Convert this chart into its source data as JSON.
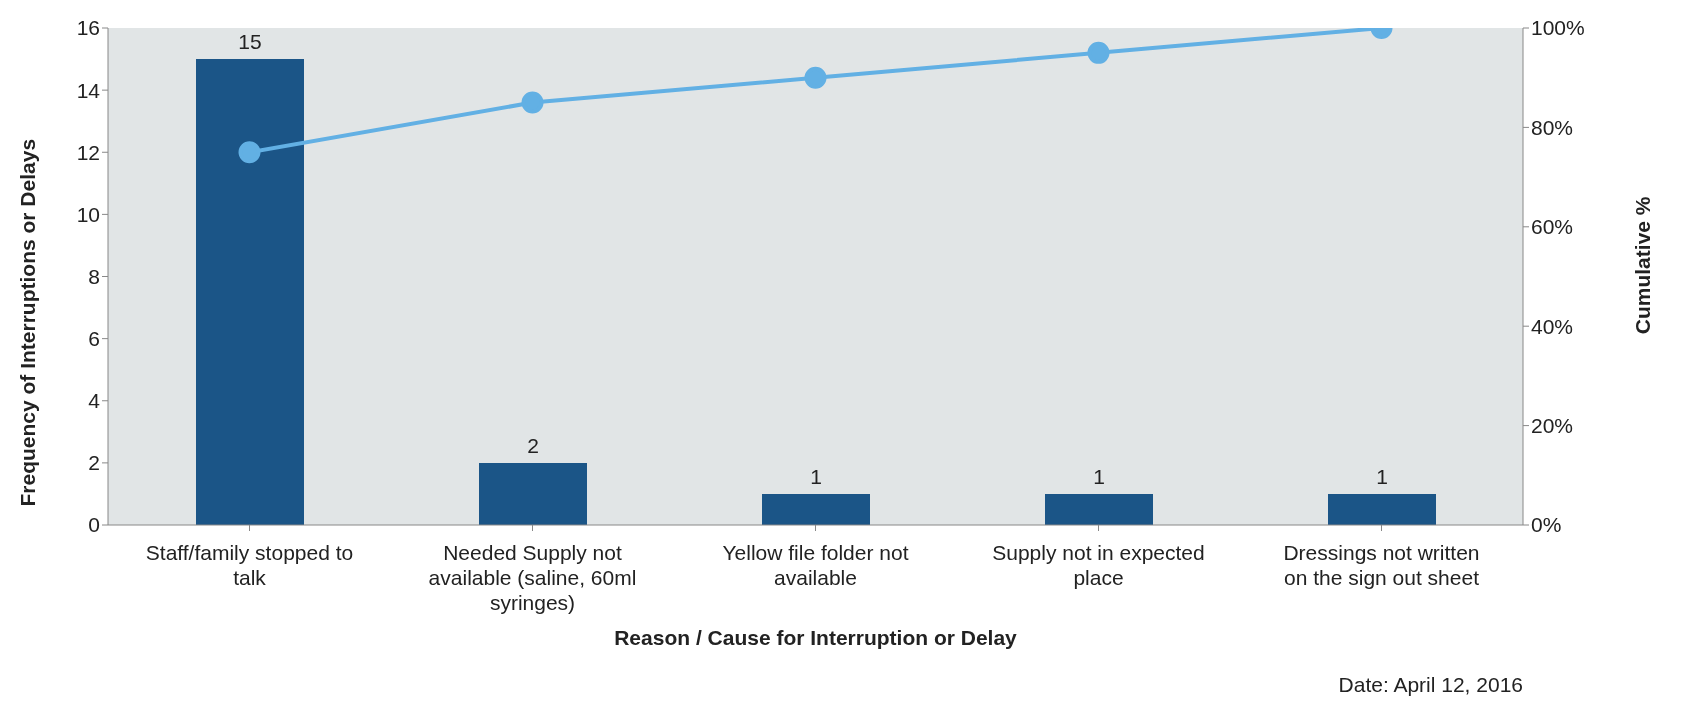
{
  "chart_data": {
    "type": "bar",
    "xlabel": "Reason / Cause for Interruption or Delay",
    "ylabel": "Frequency of Interruptions or Delays",
    "y2label": "Cumulative   %",
    "categories": [
      "Staff/family stopped to talk",
      "Needed Supply not available (saline, 60ml syringes)",
      "Yellow file folder not available",
      "Supply not in expected place",
      "Dressings not written on the sign out sheet"
    ],
    "series": [
      {
        "color": "#1b5587",
        "values": [
          15,
          2,
          1,
          1,
          1
        ],
        "value_labels": [
          "15",
          "2",
          "1",
          "1",
          "1"
        ]
      },
      {
        "type": "line",
        "axis": "y2",
        "color": "#62b0e4",
        "values": [
          75,
          85,
          90,
          95,
          100
        ]
      }
    ],
    "ylim": [
      0,
      16
    ],
    "yticks": [
      0,
      2,
      4,
      6,
      8,
      10,
      12,
      14,
      16
    ],
    "y2lim": [
      0,
      100
    ],
    "y2ticks": [
      {
        "value": 0,
        "label": "0%"
      },
      {
        "value": 20,
        "label": "20%"
      },
      {
        "value": 40,
        "label": "40%"
      },
      {
        "value": 60,
        "label": "60%"
      },
      {
        "value": 80,
        "label": "80%"
      },
      {
        "value": 100,
        "label": "100%"
      }
    ],
    "marker": "circle",
    "legend": false,
    "grid": false,
    "annotations": [
      "Date: April 12, 2016"
    ]
  }
}
